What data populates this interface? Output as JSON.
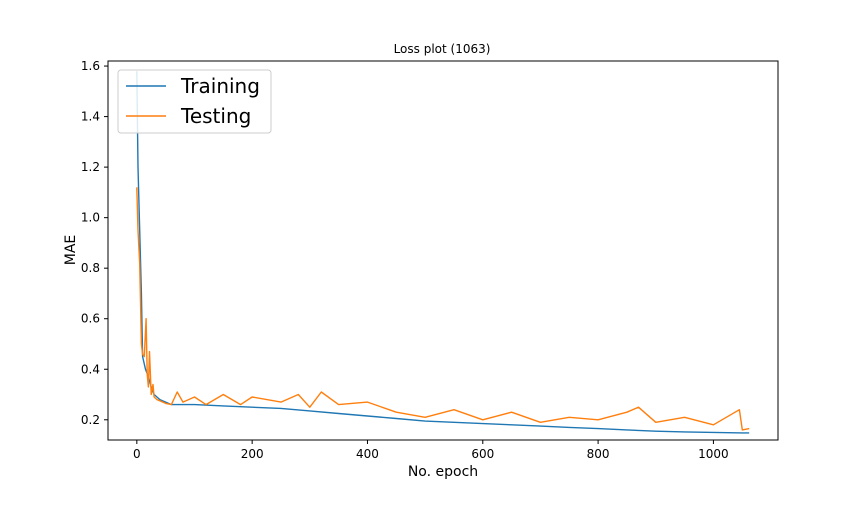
{
  "chart_data": {
    "type": "line",
    "title": "Loss plot (1063)",
    "xlabel": "No. epoch",
    "ylabel": "MAE",
    "xlim": [
      -50,
      1112
    ],
    "ylim": [
      0.12,
      1.62
    ],
    "xticks": [
      0,
      200,
      400,
      600,
      800,
      1000
    ],
    "yticks": [
      0.2,
      0.4,
      0.6,
      0.8,
      1.0,
      1.2,
      1.4,
      1.6
    ],
    "xtick_labels": [
      "0",
      "200",
      "400",
      "600",
      "800",
      "1000"
    ],
    "ytick_labels": [
      "0.2",
      "0.4",
      "0.6",
      "0.8",
      "1.0",
      "1.2",
      "1.4",
      "1.6"
    ],
    "grid": false,
    "legend_position": "top-left",
    "series": [
      {
        "name": "Training",
        "color": "#1f77b4",
        "x": [
          0,
          2,
          5,
          8,
          10,
          15,
          20,
          25,
          30,
          40,
          50,
          60,
          80,
          100,
          150,
          200,
          250,
          300,
          350,
          400,
          450,
          500,
          550,
          600,
          650,
          700,
          750,
          800,
          850,
          900,
          950,
          1000,
          1050,
          1062
        ],
        "y": [
          1.58,
          1.2,
          0.95,
          0.7,
          0.45,
          0.4,
          0.37,
          0.33,
          0.3,
          0.28,
          0.27,
          0.26,
          0.26,
          0.26,
          0.255,
          0.25,
          0.245,
          0.235,
          0.225,
          0.215,
          0.205,
          0.195,
          0.19,
          0.185,
          0.18,
          0.175,
          0.17,
          0.165,
          0.16,
          0.155,
          0.152,
          0.15,
          0.148,
          0.148
        ]
      },
      {
        "name": "Testing",
        "color": "#ff7f0e",
        "x": [
          0,
          2,
          5,
          8,
          10,
          13,
          16,
          18,
          20,
          22,
          25,
          28,
          30,
          35,
          40,
          50,
          60,
          70,
          80,
          100,
          120,
          150,
          180,
          200,
          250,
          280,
          300,
          320,
          350,
          400,
          450,
          500,
          550,
          600,
          650,
          700,
          750,
          800,
          850,
          870,
          900,
          950,
          1000,
          1045,
          1050,
          1062
        ],
        "y": [
          1.12,
          0.95,
          0.82,
          0.5,
          0.46,
          0.45,
          0.6,
          0.38,
          0.33,
          0.47,
          0.3,
          0.34,
          0.29,
          0.28,
          0.275,
          0.265,
          0.26,
          0.31,
          0.27,
          0.29,
          0.26,
          0.3,
          0.26,
          0.29,
          0.27,
          0.3,
          0.25,
          0.31,
          0.26,
          0.27,
          0.23,
          0.21,
          0.24,
          0.2,
          0.23,
          0.19,
          0.21,
          0.2,
          0.23,
          0.25,
          0.19,
          0.21,
          0.18,
          0.24,
          0.16,
          0.165
        ]
      }
    ]
  }
}
